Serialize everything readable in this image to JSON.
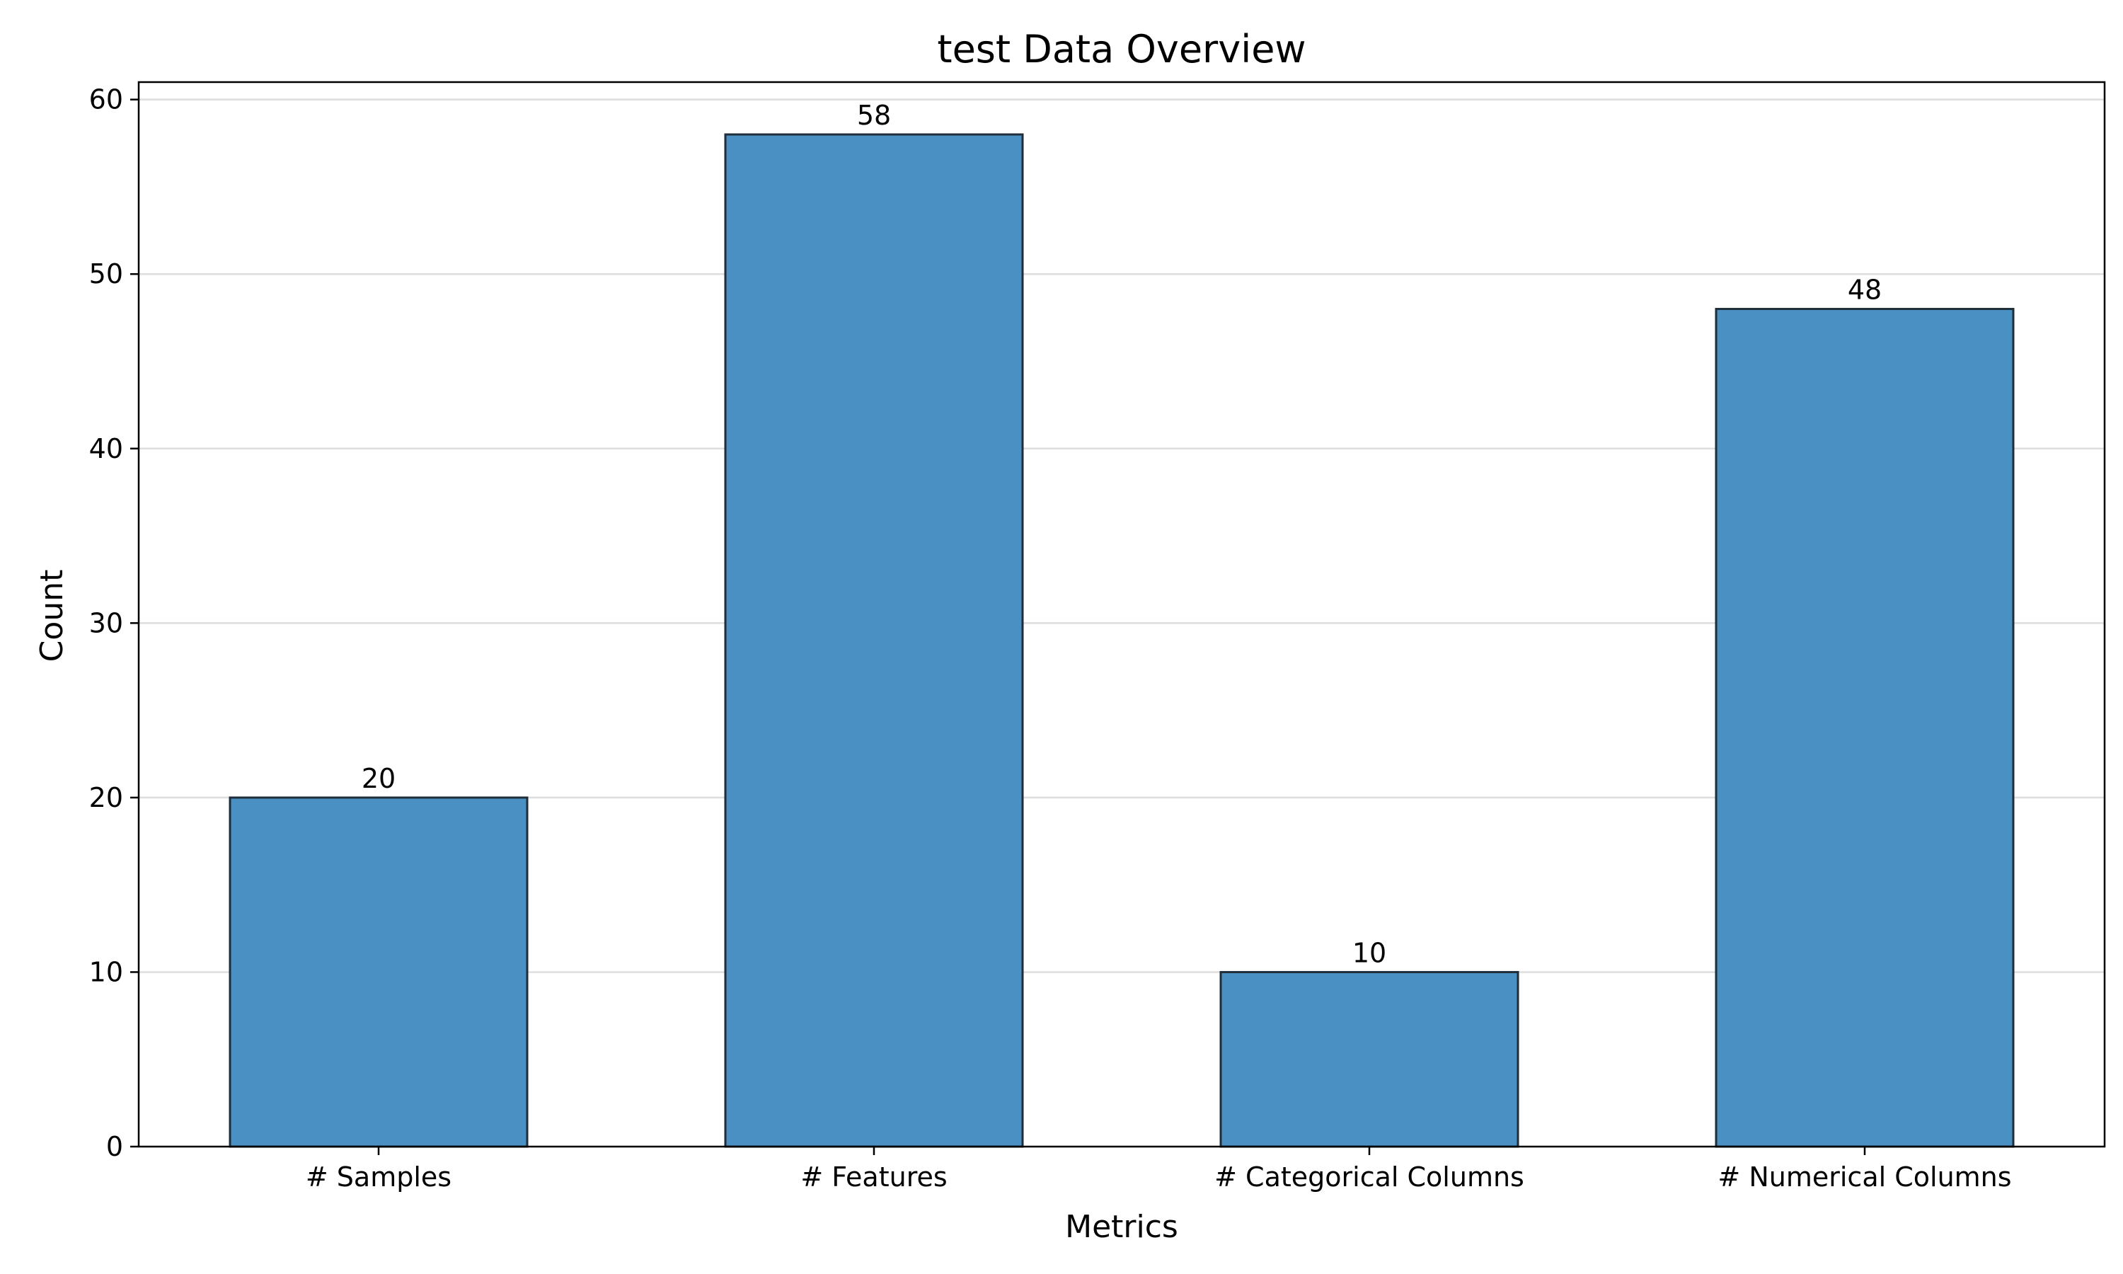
{
  "chart_data": {
    "type": "bar",
    "title": "test Data Overview",
    "xlabel": "Metrics",
    "ylabel": "Count",
    "categories": [
      "# Samples",
      "# Features",
      "# Categorical Columns",
      "# Numerical Columns"
    ],
    "values": [
      20,
      58,
      10,
      48
    ],
    "data_labels": [
      "20",
      "58",
      "10",
      "48"
    ],
    "ylim": [
      0,
      61
    ],
    "yticks": [
      0,
      10,
      20,
      30,
      40,
      50,
      60
    ],
    "grid": "y",
    "legend": "none",
    "colors": {
      "bar_fill": "#4a90c2",
      "bar_edge": "#1f2d3a",
      "grid": "#dddddd",
      "axis": "#000000"
    }
  }
}
